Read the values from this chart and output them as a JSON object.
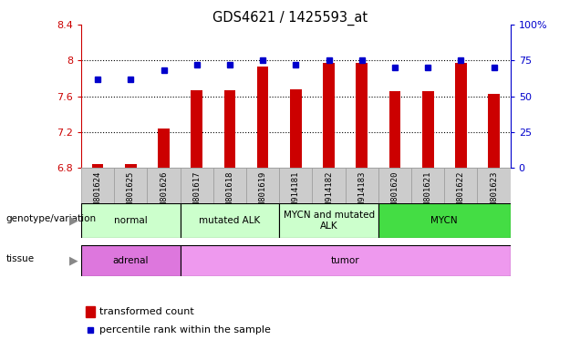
{
  "title": "GDS4621 / 1425593_at",
  "samples": [
    "GSM801624",
    "GSM801625",
    "GSM801626",
    "GSM801617",
    "GSM801618",
    "GSM801619",
    "GSM914181",
    "GSM914182",
    "GSM914183",
    "GSM801620",
    "GSM801621",
    "GSM801622",
    "GSM801623"
  ],
  "red_values": [
    6.84,
    6.84,
    7.24,
    7.67,
    7.67,
    7.93,
    7.68,
    7.97,
    7.97,
    7.66,
    7.66,
    7.97,
    7.63
  ],
  "blue_values": [
    62,
    62,
    68,
    72,
    72,
    75,
    72,
    75,
    75,
    70,
    70,
    75,
    70
  ],
  "ylim_left": [
    6.8,
    8.4
  ],
  "ylim_right": [
    0,
    100
  ],
  "yticks_left": [
    6.8,
    7.2,
    7.6,
    8.0,
    8.4
  ],
  "yticks_right": [
    0,
    25,
    50,
    75,
    100
  ],
  "ytick_labels_left": [
    "6.8",
    "7.2",
    "7.6",
    "8",
    "8.4"
  ],
  "ytick_labels_right": [
    "0",
    "25",
    "50",
    "75",
    "100%"
  ],
  "grid_lines": [
    7.2,
    7.6,
    8.0
  ],
  "genotype_groups": [
    {
      "label": "normal",
      "start": 0,
      "end": 3,
      "color": "#ccffcc"
    },
    {
      "label": "mutated ALK",
      "start": 3,
      "end": 6,
      "color": "#ccffcc"
    },
    {
      "label": "MYCN and mutated\nALK",
      "start": 6,
      "end": 9,
      "color": "#ccffcc"
    },
    {
      "label": "MYCN",
      "start": 9,
      "end": 13,
      "color": "#44dd44"
    }
  ],
  "tissue_groups": [
    {
      "label": "adrenal",
      "start": 0,
      "end": 3,
      "color": "#dd77dd"
    },
    {
      "label": "tumor",
      "start": 3,
      "end": 13,
      "color": "#ee99ee"
    }
  ],
  "red_color": "#cc0000",
  "blue_color": "#0000cc",
  "bar_width": 0.35,
  "base_value": 6.8
}
